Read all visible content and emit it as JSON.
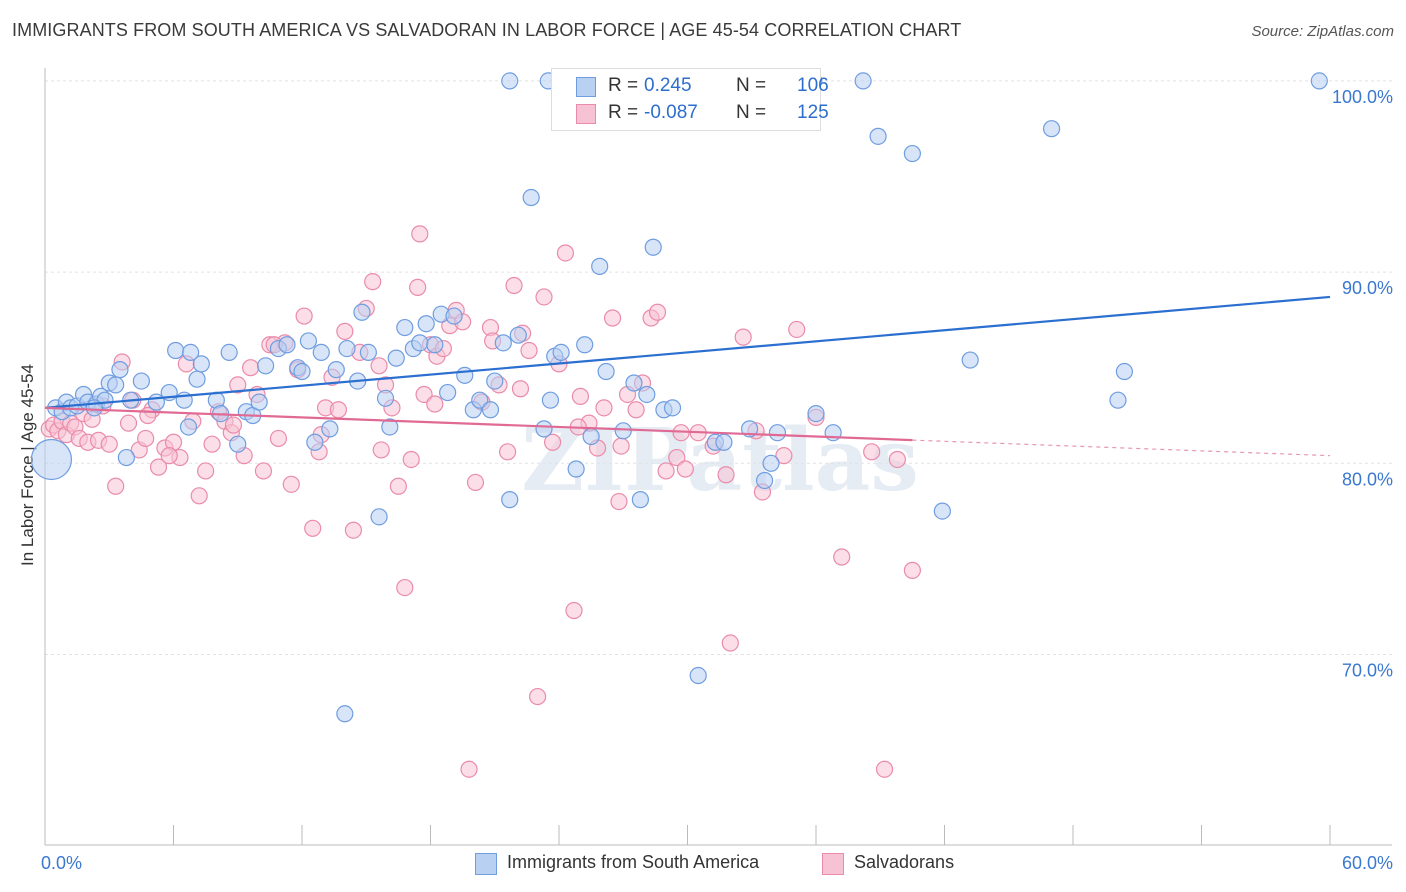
{
  "title": "IMMIGRANTS FROM SOUTH AMERICA VS SALVADORAN IN LABOR FORCE | AGE 45-54 CORRELATION CHART",
  "source": "Source: ZipAtlas.com",
  "watermark": "ZIPatlas",
  "colors": {
    "blue_fill": "#b8d0f2",
    "blue_stroke": "#6f9de0",
    "blue_line": "#2b6fd0",
    "pink_fill": "#f7c3d4",
    "pink_stroke": "#ea8bab",
    "pink_line": "#e06a93",
    "axis_text": "#3a78d0",
    "grid": "#e2e2e2"
  },
  "stats": {
    "blue": {
      "r_label": "R =",
      "r_value": "0.245",
      "n_label": "N =",
      "n_value": "106"
    },
    "pink": {
      "r_label": "R =",
      "r_value": "-0.087",
      "n_label": "N =",
      "n_value": "125"
    }
  },
  "legend": {
    "blue": "Immigrants from South America",
    "pink": "Salvadorans"
  },
  "chart_data": {
    "type": "scatter",
    "ylabel": "In Labor Force | Age 45-54",
    "xlim": [
      0,
      60
    ],
    "ylim": [
      60,
      101
    ],
    "x_tick_labels": [
      "0.0%",
      "60.0%"
    ],
    "y_ticks": [
      {
        "value": 70,
        "label": "70.0%"
      },
      {
        "value": 80,
        "label": "80.0%"
      },
      {
        "value": 90,
        "label": "90.0%"
      },
      {
        "value": 100,
        "label": "100.0%"
      }
    ],
    "grid": true,
    "series": [
      {
        "name": "Immigrants from South America",
        "trend": {
          "x": [
            0,
            60
          ],
          "y": [
            82.9,
            88.7
          ],
          "dashed_from": null
        },
        "points": [
          [
            0.3,
            80.2
          ],
          [
            0.5,
            82.9
          ],
          [
            0.8,
            82.7
          ],
          [
            1.0,
            83.2
          ],
          [
            1.2,
            82.9
          ],
          [
            1.5,
            83.0
          ],
          [
            1.8,
            83.6
          ],
          [
            2.0,
            83.2
          ],
          [
            2.4,
            83.1
          ],
          [
            2.6,
            83.5
          ],
          [
            2.8,
            83.3
          ],
          [
            3.0,
            84.2
          ],
          [
            3.3,
            84.1
          ],
          [
            3.5,
            84.9
          ],
          [
            3.8,
            80.3
          ],
          [
            4.0,
            83.3
          ],
          [
            5.2,
            83.2
          ],
          [
            5.8,
            83.7
          ],
          [
            6.1,
            85.9
          ],
          [
            6.7,
            81.9
          ],
          [
            6.8,
            85.8
          ],
          [
            7.1,
            84.4
          ],
          [
            7.3,
            85.2
          ],
          [
            8.0,
            83.3
          ],
          [
            8.2,
            82.6
          ],
          [
            8.6,
            85.8
          ],
          [
            9.0,
            81.0
          ],
          [
            9.4,
            82.7
          ],
          [
            9.7,
            82.5
          ],
          [
            10.0,
            83.2
          ],
          [
            10.3,
            85.1
          ],
          [
            10.9,
            86.0
          ],
          [
            11.3,
            86.2
          ],
          [
            11.8,
            85.0
          ],
          [
            12.0,
            84.8
          ],
          [
            12.3,
            86.4
          ],
          [
            12.6,
            81.1
          ],
          [
            12.9,
            85.8
          ],
          [
            13.3,
            81.8
          ],
          [
            13.6,
            84.9
          ],
          [
            14.1,
            86.0
          ],
          [
            14.6,
            84.3
          ],
          [
            14.8,
            87.9
          ],
          [
            15.1,
            85.8
          ],
          [
            15.6,
            77.2
          ],
          [
            15.9,
            83.4
          ],
          [
            16.1,
            81.9
          ],
          [
            16.4,
            85.5
          ],
          [
            16.8,
            87.1
          ],
          [
            17.2,
            86.0
          ],
          [
            17.5,
            86.3
          ],
          [
            17.8,
            87.3
          ],
          [
            18.2,
            86.2
          ],
          [
            18.5,
            87.8
          ],
          [
            18.8,
            83.7
          ],
          [
            19.1,
            87.7
          ],
          [
            19.6,
            84.6
          ],
          [
            20.0,
            82.8
          ],
          [
            20.3,
            83.3
          ],
          [
            20.8,
            82.8
          ],
          [
            21.0,
            84.3
          ],
          [
            21.4,
            86.3
          ],
          [
            21.7,
            78.1
          ],
          [
            22.1,
            86.7
          ],
          [
            22.7,
            93.9
          ],
          [
            23.3,
            81.8
          ],
          [
            23.6,
            83.3
          ],
          [
            23.8,
            85.6
          ],
          [
            24.1,
            85.8
          ],
          [
            24.8,
            79.7
          ],
          [
            25.2,
            86.2
          ],
          [
            25.5,
            81.4
          ],
          [
            25.9,
            90.3
          ],
          [
            26.2,
            84.8
          ],
          [
            27.0,
            81.7
          ],
          [
            27.5,
            84.2
          ],
          [
            27.8,
            78.1
          ],
          [
            28.1,
            83.6
          ],
          [
            28.4,
            91.3
          ],
          [
            28.9,
            82.8
          ],
          [
            29.3,
            82.9
          ],
          [
            30.5,
            68.9
          ],
          [
            31.3,
            81.1
          ],
          [
            31.7,
            81.1
          ],
          [
            32.9,
            81.8
          ],
          [
            33.6,
            79.1
          ],
          [
            33.9,
            80.0
          ],
          [
            34.2,
            81.6
          ],
          [
            36.0,
            82.6
          ],
          [
            36.8,
            81.6
          ],
          [
            38.2,
            100.0
          ],
          [
            38.9,
            97.1
          ],
          [
            40.5,
            96.2
          ],
          [
            41.9,
            77.5
          ],
          [
            43.2,
            85.4
          ],
          [
            47.0,
            97.5
          ],
          [
            50.1,
            83.3
          ],
          [
            50.4,
            84.8
          ],
          [
            59.5,
            100.0
          ],
          [
            21.7,
            100.0
          ],
          [
            23.5,
            100.0
          ],
          [
            35.9,
            100.0
          ],
          [
            14.0,
            66.9
          ],
          [
            2.3,
            82.9
          ],
          [
            4.5,
            84.3
          ],
          [
            6.5,
            83.3
          ]
        ]
      },
      {
        "name": "Salvadorans",
        "trend": {
          "x": [
            0,
            60
          ],
          "y": [
            82.9,
            80.4
          ],
          "dashed_from": 40.5
        },
        "points": [
          [
            0.2,
            81.8
          ],
          [
            0.4,
            82.0
          ],
          [
            0.6,
            81.7
          ],
          [
            0.8,
            82.2
          ],
          [
            1.0,
            81.5
          ],
          [
            1.2,
            82.1
          ],
          [
            1.4,
            81.9
          ],
          [
            1.6,
            81.3
          ],
          [
            1.8,
            82.6
          ],
          [
            2.0,
            81.1
          ],
          [
            2.2,
            82.3
          ],
          [
            2.5,
            81.2
          ],
          [
            2.7,
            83.0
          ],
          [
            3.0,
            81.0
          ],
          [
            3.3,
            78.8
          ],
          [
            3.6,
            85.3
          ],
          [
            3.9,
            82.1
          ],
          [
            4.1,
            83.3
          ],
          [
            4.4,
            80.7
          ],
          [
            4.7,
            81.3
          ],
          [
            5.0,
            82.8
          ],
          [
            5.3,
            79.8
          ],
          [
            5.6,
            80.8
          ],
          [
            6.0,
            81.1
          ],
          [
            6.3,
            80.3
          ],
          [
            6.6,
            85.2
          ],
          [
            6.9,
            82.2
          ],
          [
            7.2,
            78.3
          ],
          [
            7.5,
            79.6
          ],
          [
            7.8,
            81.0
          ],
          [
            8.1,
            82.7
          ],
          [
            8.4,
            82.2
          ],
          [
            8.7,
            81.6
          ],
          [
            9.0,
            84.1
          ],
          [
            9.3,
            80.4
          ],
          [
            9.6,
            85.0
          ],
          [
            9.9,
            83.6
          ],
          [
            10.2,
            79.6
          ],
          [
            10.5,
            86.2
          ],
          [
            10.9,
            81.3
          ],
          [
            11.2,
            86.3
          ],
          [
            11.5,
            78.9
          ],
          [
            11.8,
            84.9
          ],
          [
            12.1,
            87.7
          ],
          [
            12.5,
            76.6
          ],
          [
            12.8,
            80.6
          ],
          [
            13.1,
            82.9
          ],
          [
            13.4,
            84.5
          ],
          [
            13.7,
            82.8
          ],
          [
            14.0,
            86.9
          ],
          [
            14.4,
            76.5
          ],
          [
            14.7,
            85.8
          ],
          [
            15.0,
            88.1
          ],
          [
            15.3,
            89.5
          ],
          [
            15.6,
            85.1
          ],
          [
            15.9,
            84.1
          ],
          [
            16.2,
            82.9
          ],
          [
            16.5,
            78.8
          ],
          [
            16.8,
            73.5
          ],
          [
            17.1,
            80.2
          ],
          [
            17.4,
            89.2
          ],
          [
            17.7,
            83.6
          ],
          [
            18.0,
            86.2
          ],
          [
            18.3,
            85.6
          ],
          [
            18.6,
            86.0
          ],
          [
            18.9,
            87.2
          ],
          [
            19.2,
            88.0
          ],
          [
            19.5,
            87.4
          ],
          [
            19.8,
            64.0
          ],
          [
            20.1,
            79.0
          ],
          [
            20.4,
            83.2
          ],
          [
            20.8,
            87.1
          ],
          [
            21.2,
            84.1
          ],
          [
            21.6,
            80.6
          ],
          [
            21.9,
            89.3
          ],
          [
            22.3,
            86.8
          ],
          [
            22.6,
            85.9
          ],
          [
            23.0,
            67.8
          ],
          [
            23.3,
            88.7
          ],
          [
            23.7,
            81.1
          ],
          [
            24.0,
            85.2
          ],
          [
            24.3,
            91.0
          ],
          [
            24.7,
            72.3
          ],
          [
            25.0,
            83.5
          ],
          [
            25.4,
            82.1
          ],
          [
            25.8,
            80.8
          ],
          [
            26.1,
            82.9
          ],
          [
            26.5,
            87.6
          ],
          [
            26.8,
            78.0
          ],
          [
            27.2,
            83.6
          ],
          [
            27.6,
            82.8
          ],
          [
            27.9,
            84.2
          ],
          [
            28.3,
            87.6
          ],
          [
            28.6,
            87.9
          ],
          [
            29.0,
            79.6
          ],
          [
            29.5,
            80.3
          ],
          [
            29.9,
            79.7
          ],
          [
            30.5,
            81.6
          ],
          [
            31.2,
            80.9
          ],
          [
            32.0,
            70.6
          ],
          [
            32.6,
            86.6
          ],
          [
            33.5,
            78.5
          ],
          [
            34.5,
            80.4
          ],
          [
            35.1,
            87.0
          ],
          [
            36.0,
            82.4
          ],
          [
            37.2,
            75.1
          ],
          [
            38.6,
            80.6
          ],
          [
            39.2,
            64.0
          ],
          [
            39.8,
            80.2
          ],
          [
            40.5,
            74.4
          ],
          [
            17.5,
            92.0
          ],
          [
            10.7,
            86.2
          ],
          [
            5.8,
            80.4
          ],
          [
            4.8,
            82.5
          ],
          [
            8.8,
            82.0
          ],
          [
            12.9,
            81.5
          ],
          [
            15.7,
            80.7
          ],
          [
            18.2,
            83.1
          ],
          [
            20.9,
            86.4
          ],
          [
            22.2,
            83.9
          ],
          [
            24.9,
            81.9
          ],
          [
            26.9,
            80.9
          ],
          [
            29.7,
            81.6
          ],
          [
            31.8,
            79.4
          ],
          [
            33.2,
            81.7
          ]
        ]
      }
    ]
  }
}
